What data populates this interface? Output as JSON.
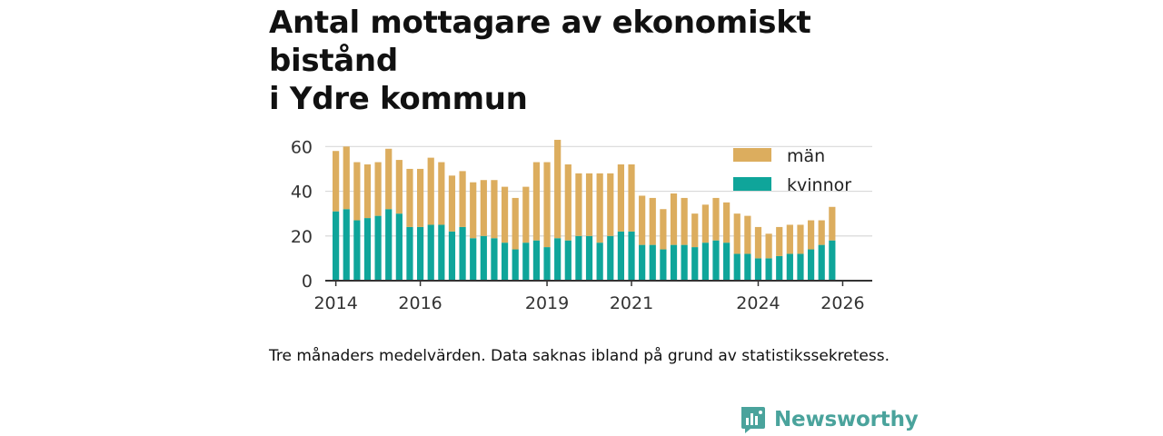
{
  "header": {
    "title_line1": "Antal mottagare av ekonomiskt bistånd",
    "title_line2": "i Ydre kommun"
  },
  "footer": {
    "note": "Tre månaders medelvärden. Data saknas ibland på grund av statistikssekretess.",
    "brand": "Newsworthy"
  },
  "colors": {
    "man": "#dcad5e",
    "kvinnor": "#0fa59a",
    "brand": "#4aa39c"
  },
  "chart_data": {
    "type": "bar",
    "stacked": true,
    "title": "Antal mottagare av ekonomiskt bistånd i Ydre kommun",
    "x_start": 2014.0,
    "x_step": 0.25,
    "xlim": [
      2013.75,
      2026.7
    ],
    "xticks": [
      2014,
      2016,
      2019,
      2021,
      2024,
      2026
    ],
    "xtick_labels": [
      "2014",
      "2016",
      "2019",
      "2021",
      "2024",
      "2026"
    ],
    "ylim": [
      0,
      65
    ],
    "yticks": [
      0,
      20,
      40,
      60
    ],
    "ytick_labels": [
      "0",
      "20",
      "40",
      "60"
    ],
    "legend": [
      "män",
      "kvinnor"
    ],
    "series": [
      {
        "name": "kvinnor",
        "values": [
          31,
          32,
          27,
          28,
          29,
          32,
          30,
          24,
          24,
          25,
          25,
          22,
          24,
          19,
          20,
          19,
          17,
          14,
          17,
          18,
          15,
          19,
          18,
          20,
          20,
          17,
          20,
          22,
          22,
          16,
          16,
          14,
          16,
          16,
          15,
          17,
          18,
          17,
          12,
          12,
          10,
          10,
          11,
          12,
          12,
          14,
          16,
          18
        ]
      },
      {
        "name": "män",
        "values": [
          27,
          28,
          26,
          24,
          24,
          27,
          24,
          26,
          26,
          30,
          28,
          25,
          25,
          25,
          25,
          26,
          25,
          23,
          25,
          35,
          38,
          44,
          34,
          28,
          28,
          31,
          28,
          30,
          30,
          22,
          21,
          18,
          23,
          21,
          15,
          17,
          19,
          18,
          18,
          17,
          14,
          11,
          13,
          13,
          13,
          13,
          11,
          15
        ]
      }
    ]
  }
}
